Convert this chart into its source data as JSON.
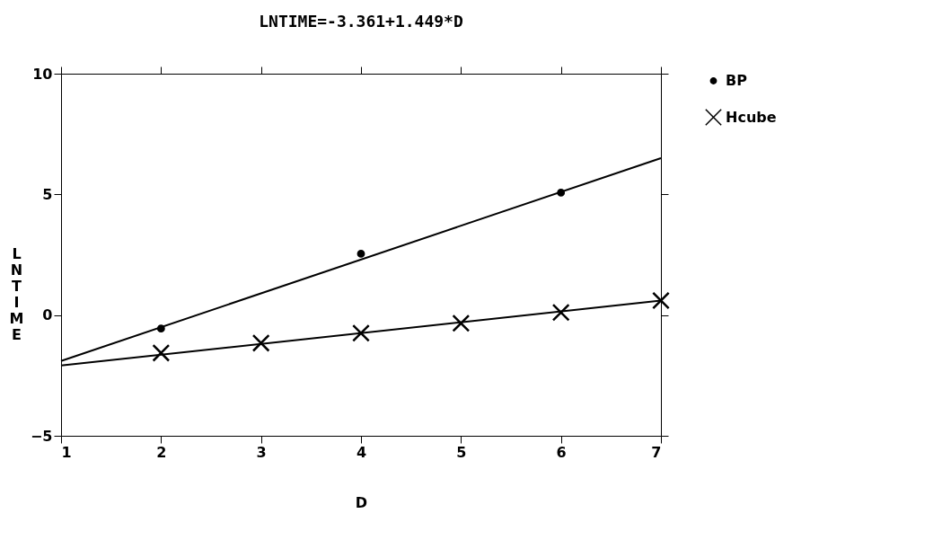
{
  "chart_data": {
    "type": "scatter",
    "title": "LNTIME=-3.361+1.449*D",
    "xlabel": "D",
    "ylabel": "LNTIME",
    "xlim": [
      1,
      7
    ],
    "xticks": [
      1,
      2,
      3,
      4,
      5,
      6,
      7
    ],
    "ylim": [
      -5,
      10
    ],
    "yticks": [
      -5,
      0,
      5,
      10
    ],
    "grid": false,
    "legend": "right",
    "series": [
      {
        "name": "BP",
        "color": "#000000",
        "marker": "circle",
        "x": [
          2,
          4,
          6
        ],
        "values": [
          -0.56,
          2.54,
          5.07
        ]
      },
      {
        "name": "Hcube",
        "color": "#000000",
        "marker": "cross",
        "x": [
          2,
          3,
          4,
          5,
          6,
          7
        ],
        "values": [
          -1.57,
          -1.16,
          -0.75,
          -0.34,
          0.11,
          0.6
        ]
      },
      {
        "color": "#000000",
        "type": "line",
        "marker": "none",
        "x": [
          1,
          7
        ],
        "values": [
          -1.9,
          6.5
        ]
      },
      {
        "color": "#000000",
        "type": "line",
        "marker": "none",
        "x": [
          1,
          7
        ],
        "values": [
          -2.09,
          0.6
        ]
      }
    ]
  }
}
